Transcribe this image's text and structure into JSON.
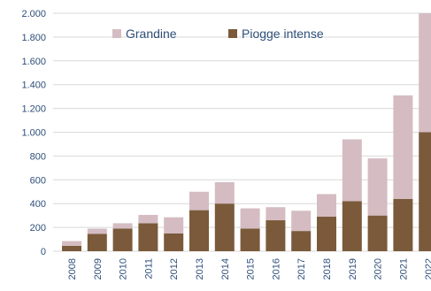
{
  "chart_data": {
    "type": "bar",
    "stacked": true,
    "categories": [
      "2008",
      "2009",
      "2010",
      "2011",
      "2012",
      "2013",
      "2014",
      "2015",
      "2016",
      "2017",
      "2018",
      "2019",
      "2020",
      "2021",
      "2022"
    ],
    "series": [
      {
        "name": "Piogge intense",
        "color": "#7a5a3a",
        "values": [
          45,
          145,
          190,
          235,
          150,
          345,
          400,
          190,
          260,
          170,
          290,
          420,
          300,
          440,
          1000
        ]
      },
      {
        "name": "Grandine",
        "color": "#d4bcc2",
        "values": [
          40,
          45,
          45,
          70,
          135,
          155,
          180,
          170,
          110,
          170,
          190,
          520,
          480,
          870,
          1000
        ]
      }
    ],
    "legend_order": [
      "Grandine",
      "Piogge intense"
    ],
    "legend_position": "top",
    "ylim": [
      0,
      2000
    ],
    "yticks": [
      0,
      200,
      400,
      600,
      800,
      1000,
      1200,
      1400,
      1600,
      1800,
      2000
    ],
    "ytick_labels": [
      "0",
      "200",
      "400",
      "600",
      "800",
      "1.000",
      "1.200",
      "1.400",
      "1.600",
      "1.800",
      "2.000"
    ],
    "grid": true
  }
}
